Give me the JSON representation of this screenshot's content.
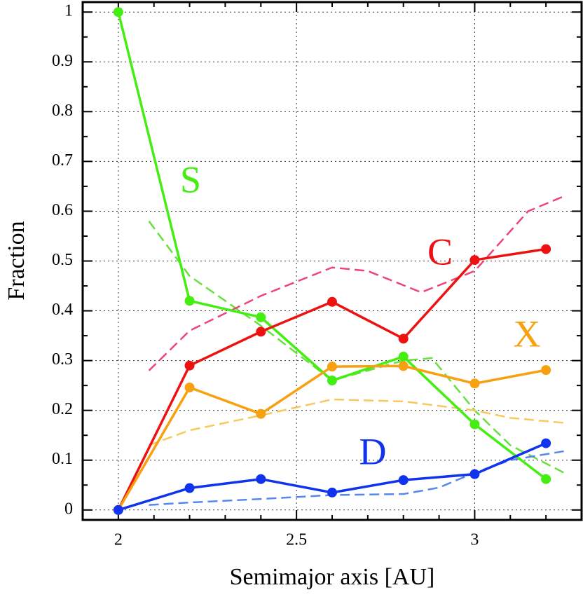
{
  "chart_data": {
    "type": "line",
    "xlabel": "Semimajor axis [AU]",
    "ylabel": "Fraction",
    "xlim": [
      1.9,
      3.3
    ],
    "ylim": [
      -0.02,
      1.02
    ],
    "xticks": [
      2,
      2.5,
      3
    ],
    "yticks": [
      0,
      0.1,
      0.2,
      0.3,
      0.4,
      0.5,
      0.6,
      0.7,
      0.8,
      0.9,
      1
    ],
    "xminorticks": [
      2.1,
      2.2,
      2.3,
      2.4,
      2.6,
      2.7,
      2.8,
      2.9,
      3.1,
      3.2
    ],
    "yminorticks": [
      0.05,
      0.15,
      0.25,
      0.35,
      0.45,
      0.55,
      0.65,
      0.75,
      0.85,
      0.95
    ],
    "grid": true,
    "series": [
      {
        "name": "S",
        "color": "#44ee11",
        "x": [
          2,
          2.2,
          2.4,
          2.6,
          2.8,
          3,
          3.2
        ],
        "values": [
          1,
          0.42,
          0.387,
          0.26,
          0.308,
          0.172,
          0.062
        ]
      },
      {
        "name": "C",
        "color": "#ee1111",
        "x": [
          2,
          2.2,
          2.4,
          2.6,
          2.8,
          3,
          3.2
        ],
        "values": [
          0,
          0.29,
          0.358,
          0.418,
          0.344,
          0.502,
          0.524
        ]
      },
      {
        "name": "X",
        "color": "#f7a010",
        "x": [
          2,
          2.2,
          2.4,
          2.6,
          2.8,
          3,
          3.2
        ],
        "values": [
          0,
          0.246,
          0.193,
          0.288,
          0.289,
          0.254,
          0.281
        ]
      },
      {
        "name": "D",
        "color": "#1133ee",
        "x": [
          2,
          2.2,
          2.4,
          2.6,
          2.8,
          3,
          3.2
        ],
        "values": [
          0,
          0.044,
          0.062,
          0.035,
          0.06,
          0.072,
          0.134
        ]
      }
    ],
    "models": [
      {
        "color": "#66e040",
        "x": [
          2.086,
          2.2,
          2.4,
          2.6,
          2.8,
          2.88,
          3.0,
          3.1,
          3.25
        ],
        "values": [
          0.58,
          0.47,
          0.37,
          0.26,
          0.3,
          0.305,
          0.2,
          0.13,
          0.075
        ]
      },
      {
        "color": "#ee4477",
        "x": [
          2.086,
          2.2,
          2.4,
          2.6,
          2.7,
          2.85,
          3.0,
          3.15,
          3.25
        ],
        "values": [
          0.28,
          0.36,
          0.43,
          0.487,
          0.48,
          0.437,
          0.48,
          0.6,
          0.63
        ]
      },
      {
        "color": "#f8c860",
        "x": [
          2.086,
          2.2,
          2.4,
          2.6,
          2.8,
          3.0,
          3.1,
          3.25
        ],
        "values": [
          0.13,
          0.16,
          0.19,
          0.222,
          0.218,
          0.2,
          0.185,
          0.175
        ]
      },
      {
        "color": "#5588ee",
        "x": [
          2.086,
          2.2,
          2.4,
          2.6,
          2.8,
          2.9,
          3.0,
          3.1,
          3.25
        ],
        "values": [
          0.01,
          0.015,
          0.022,
          0.03,
          0.032,
          0.045,
          0.075,
          0.1,
          0.118
        ]
      }
    ]
  }
}
